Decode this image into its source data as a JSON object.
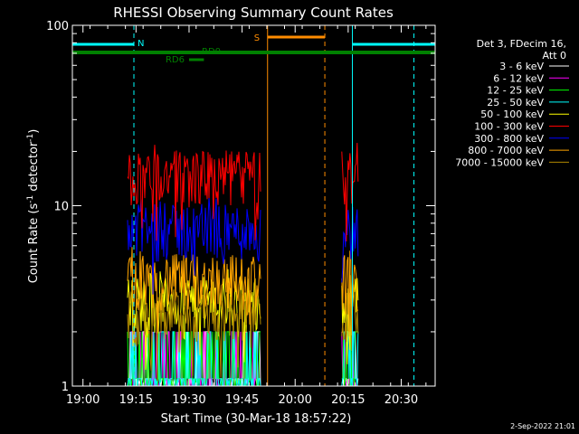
{
  "chart_data": {
    "type": "line",
    "title": "RHESSI Observing Summary Count Rates",
    "xlabel": "Start Time (30-Mar-18 18:57:22)",
    "ylabel_main": "Count Rate (s",
    "ylabel_sup1": "-1",
    "ylabel_mid": " detector",
    "ylabel_sup2": "-1",
    "ylabel_end": ")",
    "yscale": "log",
    "ylim": [
      1,
      100
    ],
    "xlim_minutes": [
      18.95,
      20.66
    ],
    "x_ticks": [
      {
        "t": 19.0,
        "label": "19:00"
      },
      {
        "t": 19.25,
        "label": "19:15"
      },
      {
        "t": 19.5,
        "label": "19:30"
      },
      {
        "t": 19.75,
        "label": "19:45"
      },
      {
        "t": 20.0,
        "label": "20:00"
      },
      {
        "t": 20.25,
        "label": "20:15"
      },
      {
        "t": 20.5,
        "label": "20:30"
      }
    ],
    "y_ticks": [
      {
        "v": 1,
        "label": "1"
      },
      {
        "v": 10,
        "label": "10"
      },
      {
        "v": 100,
        "label": "100"
      }
    ],
    "legend_header": [
      "Det 3, FDecim 16,",
      "Att 0"
    ],
    "series": [
      {
        "name": "3 - 6 keV",
        "color": "#ffffff",
        "level": 1.5
      },
      {
        "name": "6 - 12 keV",
        "color": "#ff00ff",
        "level": 1.5
      },
      {
        "name": "12 - 25 keV",
        "color": "#00ff00",
        "level": 1.6
      },
      {
        "name": "25 - 50 keV",
        "color": "#00ffff",
        "level": 1.6
      },
      {
        "name": "50 - 100 keV",
        "color": "#ffff00",
        "level": 3.0
      },
      {
        "name": "100 - 300 keV",
        "color": "#ff0000",
        "level": 15
      },
      {
        "name": "300 - 800 keV",
        "color": "#0000ff",
        "level": 7.5
      },
      {
        "name": "800 - 7000 keV",
        "color": "#ffa500",
        "level": 4.0
      },
      {
        "name": "7000 - 15000 keV",
        "color": "#b08800",
        "level": 2.5
      }
    ],
    "data_intervals": [
      {
        "start": 19.21,
        "end": 19.84
      },
      {
        "start": 20.22,
        "end": 20.3
      }
    ],
    "flags": {
      "night": {
        "label": "N",
        "color": "#00ffff",
        "intervals": [
          [
            18.95,
            19.24
          ],
          [
            20.27,
            20.66
          ]
        ]
      },
      "saa": {
        "label": "S",
        "color": "#ff8c00",
        "intervals": [
          [
            19.87,
            20.14
          ]
        ]
      },
      "rd0": {
        "label": "RD0",
        "color": "#008000"
      },
      "rd6": {
        "label": "RD6",
        "color": "#008000"
      }
    },
    "vertical_markers": [
      {
        "t": 18.95,
        "color": "#00ffff",
        "style": "solid"
      },
      {
        "t": 19.24,
        "color": "#00ffff",
        "style": "dashed"
      },
      {
        "t": 19.87,
        "color": "#ff8c00",
        "style": "solid"
      },
      {
        "t": 20.14,
        "color": "#ff8c00",
        "style": "dashed"
      },
      {
        "t": 20.27,
        "color": "#00ffff",
        "style": "solid"
      },
      {
        "t": 20.56,
        "color": "#00ffff",
        "style": "dashed"
      }
    ],
    "footer_date": "2-Sep-2022 21:01"
  }
}
